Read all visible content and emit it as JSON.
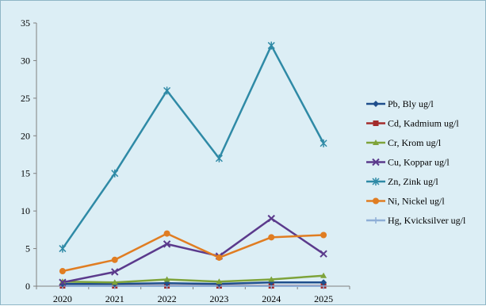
{
  "chart_data": {
    "type": "line",
    "categories": [
      "2020",
      "2021",
      "2022",
      "2023",
      "2024",
      "2025"
    ],
    "ylim": [
      0,
      35
    ],
    "yticks": [
      0,
      5,
      10,
      15,
      20,
      25,
      30,
      35
    ],
    "grid": false,
    "legend_position": "right",
    "series": [
      {
        "name": "Pb, Bly ug/l",
        "color": "#1f4e8c",
        "marker": "diamond",
        "values": [
          0.3,
          0.3,
          0.4,
          0.3,
          0.5,
          0.5
        ]
      },
      {
        "name": "Cd, Kadmium ug/l",
        "color": "#a32b2b",
        "marker": "square",
        "values": [
          0.05,
          0.05,
          0.05,
          0.05,
          0.05,
          0.05
        ]
      },
      {
        "name": "Cr, Krom ug/l",
        "color": "#7ea33a",
        "marker": "triangle",
        "values": [
          0.6,
          0.5,
          0.9,
          0.6,
          0.9,
          1.4
        ]
      },
      {
        "name": "Cu, Koppar ug/l",
        "color": "#5b3a8c",
        "marker": "x",
        "values": [
          0.5,
          1.9,
          5.6,
          4.0,
          9.0,
          4.3
        ]
      },
      {
        "name": "Zn, Zink  ug/l",
        "color": "#2f8aa6",
        "marker": "star",
        "values": [
          5,
          15,
          26,
          17,
          32,
          19
        ]
      },
      {
        "name": "Ni, Nickel  ug/l",
        "color": "#e07d22",
        "marker": "circle",
        "values": [
          2.0,
          3.5,
          7.0,
          3.8,
          6.5,
          6.8
        ]
      },
      {
        "name": "Hg, Kvicksilver ug/l",
        "color": "#8eaed6",
        "marker": "plus",
        "values": [
          0.02,
          0.02,
          0.02,
          0.02,
          0.02,
          0.02
        ]
      }
    ]
  }
}
